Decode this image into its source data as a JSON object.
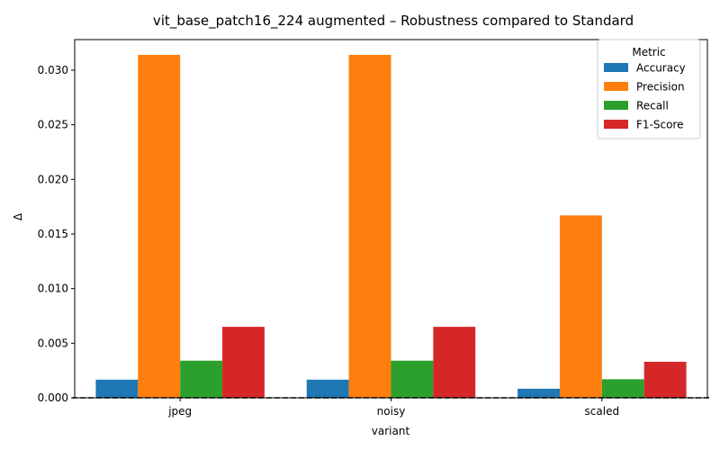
{
  "chart_data": {
    "type": "bar",
    "title": "vit_base_patch16_224 augmented – Robustness compared to Standard",
    "xlabel": "variant",
    "ylabel": "Δ",
    "categories": [
      "jpeg",
      "noisy",
      "scaled"
    ],
    "series": [
      {
        "name": "Accuracy",
        "color": "#1f77b4",
        "values": [
          0.00166,
          0.00166,
          0.00083
        ]
      },
      {
        "name": "Precision",
        "color": "#ff7f0e",
        "values": [
          0.0314,
          0.0314,
          0.0167
        ]
      },
      {
        "name": "Recall",
        "color": "#2ca02c",
        "values": [
          0.0034,
          0.0034,
          0.0017
        ]
      },
      {
        "name": "F1-Score",
        "color": "#d62728",
        "values": [
          0.0065,
          0.0065,
          0.0033
        ]
      }
    ],
    "ylim": [
      0,
      0.0328
    ],
    "yticks": [
      "0.000",
      "0.005",
      "0.010",
      "0.015",
      "0.020",
      "0.025",
      "0.030"
    ],
    "legend_title": "Metric",
    "legend_position": "top-right",
    "reference_line": 0,
    "grid": false
  }
}
